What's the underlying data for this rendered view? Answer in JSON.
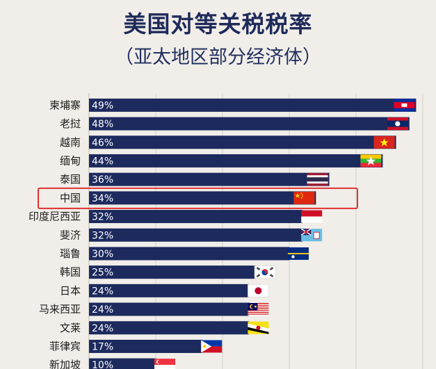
{
  "title": "美国对等关税税率",
  "subtitle": "（亚太地区部分经济体）",
  "colors": {
    "background": "#f1eee9",
    "bar": "#1c2a5e",
    "highlight": "#e03030",
    "title": "#1f2a5a"
  },
  "chart_data": {
    "type": "bar",
    "orientation": "horizontal",
    "categories": [
      "柬埔寨",
      "老挝",
      "越南",
      "缅甸",
      "泰国",
      "中国",
      "印度尼西亚",
      "斐济",
      "瑙鲁",
      "韩国",
      "日本",
      "马来西亚",
      "文莱",
      "菲律宾",
      "新加坡"
    ],
    "values": [
      49,
      48,
      46,
      44,
      36,
      34,
      32,
      32,
      30,
      25,
      24,
      24,
      24,
      17,
      10
    ],
    "value_labels": [
      "49%",
      "48%",
      "46%",
      "44%",
      "36%",
      "34%",
      "32%",
      "32%",
      "30%",
      "25%",
      "24%",
      "24%",
      "24%",
      "17%",
      "10%"
    ],
    "flags": [
      "cambodia-flag",
      "laos-flag",
      "vietnam-flag",
      "myanmar-flag",
      "thailand-flag",
      "china-flag",
      "indonesia-flag",
      "fiji-flag",
      "nauru-flag",
      "south-korea-flag",
      "japan-flag",
      "malaysia-flag",
      "brunei-flag",
      "philippines-flag",
      "singapore-flag"
    ],
    "highlighted": "中国",
    "xlim": [
      0,
      50
    ],
    "grid": true,
    "xlabel": "",
    "ylabel": ""
  }
}
